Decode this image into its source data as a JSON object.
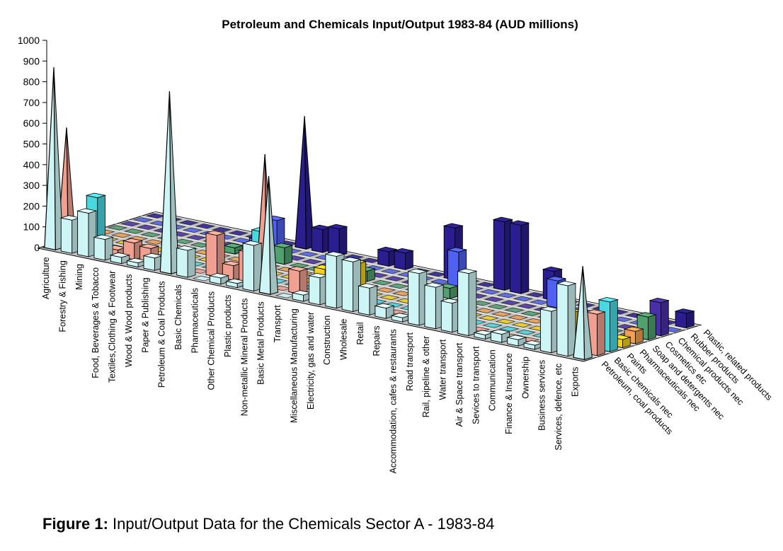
{
  "chart_data": {
    "type": "bar3d",
    "title": "Petroleum and Chemicals Input/Output 1983-84 (AUD millions)",
    "zlim": [
      0,
      1000
    ],
    "zticks": [
      0,
      100,
      200,
      300,
      400,
      500,
      600,
      700,
      800,
      900,
      1000
    ],
    "categories": [
      "Agriculture",
      "Forestry & Fishing",
      "Mining",
      "Food, Beverages & Tobacco",
      "Textiles,Clothing & Footwear",
      "Wood & Wood products",
      "Paper & Publishing",
      "Petroleum & Coal Products",
      "Basic Chemicals",
      "Pharmaceuticals",
      "Other Chemical Products",
      "Plastic products",
      "Non-metallic Mineral Products",
      "Basic Metal Products",
      "Transport",
      "Miscellaneous Manufacturing",
      "Electricity, gas and water",
      "Construction",
      "Wholesale",
      "Retail",
      "Repairs",
      "Accommodation, cafes & restaurants",
      "Road transport",
      "Rail, pipeline & other",
      "Water transport",
      "Air & Space transport",
      "Sevices to transport",
      "Communication",
      "Finance & Insurance",
      "Ownership",
      "Business services",
      "Services, defence, etc",
      "Exports"
    ],
    "series": [
      {
        "name": "Petroleum, coal products",
        "color": "#cdf5f5",
        "values": [
          870,
          160,
          210,
          100,
          30,
          20,
          60,
          870,
          130,
          0,
          30,
          20,
          220,
          560,
          0,
          30,
          130,
          250,
          240,
          130,
          50,
          20,
          250,
          200,
          140,
          300,
          20,
          40,
          30,
          20,
          200,
          340,
          440
        ]
      },
      {
        "name": "Basic chemicals nec",
        "color": "#f0a090",
        "values": [
          560,
          0,
          0,
          30,
          80,
          70,
          20,
          0,
          0,
          200,
          70,
          150,
          630,
          0,
          110,
          0,
          0,
          0,
          0,
          0,
          0,
          0,
          0,
          0,
          0,
          0,
          0,
          0,
          0,
          0,
          0,
          0,
          200
        ]
      },
      {
        "name": "Paints",
        "color": "#4ad8e0",
        "values": [
          0,
          230,
          0,
          0,
          0,
          0,
          40,
          0,
          0,
          0,
          0,
          230,
          0,
          0,
          0,
          0,
          0,
          0,
          0,
          0,
          0,
          0,
          0,
          0,
          0,
          0,
          0,
          0,
          0,
          0,
          0,
          0,
          240
        ]
      },
      {
        "name": "Pharmaceuticals nec",
        "color": "#f0d020",
        "values": [
          0,
          0,
          0,
          0,
          0,
          0,
          0,
          0,
          0,
          0,
          0,
          0,
          0,
          0,
          80,
          70,
          140,
          0,
          0,
          0,
          0,
          0,
          0,
          0,
          0,
          0,
          0,
          0,
          0,
          120,
          0,
          0,
          40
        ]
      },
      {
        "name": "Soap and detergents nec",
        "color": "#f0a050",
        "values": [
          0,
          0,
          0,
          0,
          0,
          0,
          0,
          0,
          0,
          0,
          0,
          0,
          0,
          0,
          0,
          0,
          0,
          0,
          0,
          0,
          0,
          0,
          0,
          0,
          0,
          0,
          0,
          0,
          0,
          0,
          0,
          0,
          60
        ]
      },
      {
        "name": "Cosmetics etc",
        "color": "#50a070",
        "values": [
          0,
          0,
          0,
          0,
          0,
          0,
          0,
          30,
          0,
          60,
          80,
          0,
          0,
          0,
          50,
          50,
          0,
          0,
          0,
          0,
          50,
          0,
          0,
          0,
          0,
          0,
          0,
          0,
          0,
          0,
          0,
          0,
          110
        ]
      },
      {
        "name": "Chemical products nec",
        "color": "#4a30a8",
        "values": [
          0,
          0,
          0,
          0,
          0,
          0,
          0,
          0,
          0,
          0,
          0,
          0,
          0,
          0,
          0,
          0,
          0,
          0,
          0,
          0,
          0,
          0,
          0,
          0,
          0,
          0,
          0,
          0,
          0,
          0,
          0,
          0,
          160
        ]
      },
      {
        "name": "Rubber products",
        "color": "#5060f0",
        "values": [
          0,
          0,
          0,
          0,
          0,
          0,
          0,
          30,
          140,
          0,
          0,
          0,
          0,
          0,
          0,
          0,
          0,
          0,
          0,
          170,
          0,
          0,
          0,
          0,
          0,
          130,
          0,
          0,
          0,
          0,
          0,
          0,
          0
        ]
      },
      {
        "name": "Plastic, related products",
        "color": "#2a1e90",
        "values": [
          0,
          0,
          0,
          0,
          0,
          0,
          0,
          0,
          0,
          630,
          110,
          130,
          0,
          0,
          70,
          80,
          0,
          0,
          250,
          0,
          0,
          330,
          330,
          0,
          140,
          0,
          0,
          0,
          0,
          0,
          0,
          0,
          70
        ]
      }
    ]
  },
  "caption": {
    "label": "Figure 1:",
    "text": " Input/Output Data for the Chemicals Sector A - 1983-84"
  }
}
